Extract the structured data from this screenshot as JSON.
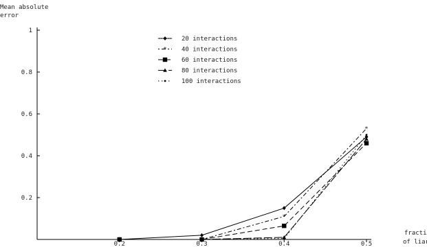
{
  "chart_data": {
    "type": "line",
    "ylabel_line1": "Mean absolute",
    "ylabel_line2": "error",
    "xlabel_line1": "fraction",
    "xlabel_line2": "of liars",
    "xlim": [
      0.1,
      0.5
    ],
    "ylim": [
      0,
      1
    ],
    "x_ticks": [
      0.2,
      0.3,
      0.4,
      0.5
    ],
    "x_tick_labels": [
      "0.2",
      "0.3",
      "0.4",
      "0.5"
    ],
    "y_ticks": [
      0.2,
      0.4,
      0.6,
      0.8,
      1
    ],
    "y_tick_labels": [
      "0.2",
      "0.4",
      "0.6",
      "0.8",
      "1"
    ],
    "legend_position": "top-center",
    "x": [
      0.2,
      0.3,
      0.4,
      0.5
    ],
    "series": [
      {
        "name": "20 interactions",
        "values": [
          0.0,
          0.02,
          0.15,
          0.49
        ],
        "dash": "none",
        "marker": "diamond"
      },
      {
        "name": "40 interactions",
        "values": [
          0.0,
          0.0,
          0.11,
          0.53
        ],
        "dash": "2,3,6,3",
        "marker": "star"
      },
      {
        "name": "60 interactions",
        "values": [
          0.0,
          0.0,
          0.065,
          0.46
        ],
        "dash": "7,4",
        "marker": "square"
      },
      {
        "name": "80 interactions",
        "values": [
          0.0,
          0.0,
          0.01,
          0.48
        ],
        "dash": "12,3",
        "marker": "triangle"
      },
      {
        "name": "100 interactions",
        "values": [
          0.0,
          0.0,
          0.005,
          0.5
        ],
        "dash": "1.5,3.5",
        "marker": "dot"
      }
    ]
  }
}
